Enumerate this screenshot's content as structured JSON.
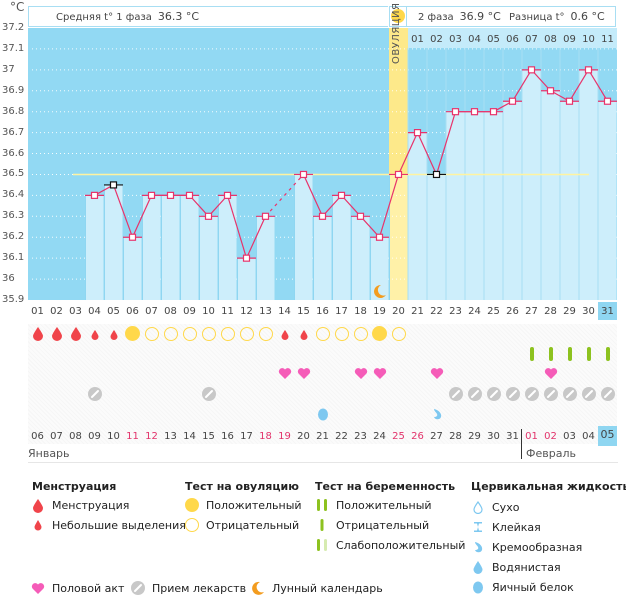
{
  "header": {
    "unit": "°C",
    "phase1_label": "Средняя t° 1 фаза",
    "phase1_value": "36.3 °C",
    "phase2_label": "2 фаза",
    "phase2_value": "36.9 °C",
    "diff_label": "Разница t°",
    "diff_value": "0.6 °C",
    "ovulation_label": "ОВУЛЯЦИЯ"
  },
  "chart_data": {
    "type": "line",
    "title": "",
    "xlabel": "",
    "ylabel": "°C",
    "ylim": [
      35.9,
      37.2
    ],
    "yticks": [
      "37.2",
      "37.1",
      "37",
      "36.9",
      "36.8",
      "36.7",
      "36.6",
      "36.5",
      "36.4",
      "36.3",
      "36.2",
      "36.1",
      "36",
      "35.9"
    ],
    "cycle_days": [
      "01",
      "02",
      "03",
      "04",
      "05",
      "06",
      "07",
      "08",
      "09",
      "10",
      "11",
      "12",
      "13",
      "14",
      "15",
      "16",
      "17",
      "18",
      "19",
      "20",
      "21",
      "22",
      "23",
      "24",
      "25",
      "26",
      "27",
      "28",
      "29",
      "30",
      "31"
    ],
    "phase2_day_labels": [
      "01",
      "02",
      "03",
      "04",
      "05",
      "06",
      "07",
      "08",
      "09",
      "10",
      "11"
    ],
    "temperatures": [
      null,
      null,
      null,
      36.4,
      36.45,
      36.2,
      36.4,
      36.4,
      36.4,
      36.3,
      36.4,
      36.1,
      36.3,
      null,
      36.5,
      36.3,
      36.4,
      36.3,
      36.2,
      36.5,
      36.7,
      36.5,
      36.8,
      36.8,
      36.8,
      36.85,
      37.0,
      36.9,
      36.85,
      37.0,
      36.85
    ],
    "excluded_days": [
      5,
      22
    ],
    "coverline": 36.5,
    "ovulation_day": 20,
    "phase2_start_day": 21,
    "current_day": 31,
    "series": [
      {
        "name": "Базальная температура",
        "values": [
          null,
          null,
          null,
          36.4,
          36.45,
          36.2,
          36.4,
          36.4,
          36.4,
          36.3,
          36.4,
          36.1,
          36.3,
          null,
          36.5,
          36.3,
          36.4,
          36.3,
          36.2,
          36.5,
          36.7,
          36.5,
          36.8,
          36.8,
          36.8,
          36.85,
          37.0,
          36.9,
          36.85,
          37.0,
          36.85
        ]
      }
    ]
  },
  "calendar": {
    "dates": [
      "06",
      "07",
      "08",
      "09",
      "10",
      "11",
      "12",
      "13",
      "14",
      "15",
      "16",
      "17",
      "18",
      "19",
      "20",
      "21",
      "22",
      "23",
      "24",
      "25",
      "26",
      "27",
      "28",
      "29",
      "30",
      "31",
      "01",
      "02",
      "03",
      "04",
      "05"
    ],
    "red_dates_idx": [
      6,
      7,
      13,
      14,
      20,
      21,
      27,
      28
    ],
    "today_idx": 31,
    "month1": "Январь",
    "month2": "Февраль",
    "month2_start_idx": 27
  },
  "rows": {
    "menstruation": {
      "1": "heavy",
      "2": "heavy",
      "3": "heavy",
      "4": "light",
      "5": "light",
      "14": "light",
      "15": "light"
    },
    "ovulation_test": {
      "6": "positive",
      "7": "negative",
      "8": "negative",
      "9": "negative",
      "10": "negative",
      "11": "negative",
      "12": "negative",
      "13": "negative",
      "16": "negative",
      "17": "negative",
      "18": "negative",
      "19": "positive",
      "20": "negative"
    },
    "pregnancy_test": {
      "27": "negative",
      "28": "negative",
      "29": "negative",
      "30": "negative",
      "31": "negative"
    },
    "intercourse": [
      14,
      15,
      18,
      19,
      22,
      28
    ],
    "medication": [
      4,
      10,
      23,
      24,
      25,
      26,
      27,
      28,
      29,
      30,
      31
    ],
    "cervical_fluid": {
      "16": "egg_white",
      "22": "creamy"
    },
    "lunar": [
      19
    ]
  },
  "legend": {
    "menstruation": {
      "title": "Менструация",
      "items": [
        "Менструация",
        "Небольшие выделения"
      ]
    },
    "ovulation_test": {
      "title": "Тест на овуляцию",
      "items": [
        "Положительный",
        "Отрицательный"
      ]
    },
    "pregnancy_test": {
      "title": "Тест на беременность",
      "items": [
        "Положительный",
        "Отрицательный",
        "Слабоположительный"
      ]
    },
    "cervical_fluid": {
      "title": "Цервикальная жидкость",
      "items": [
        "Сухо",
        "Клейкая",
        "Кремообразная",
        "Водянистая",
        "Яичный белок"
      ]
    },
    "other": [
      "Половой акт",
      "Прием лекарств",
      "Лунный календарь"
    ]
  },
  "colors": {
    "sky": "#92d9f3",
    "bar": "#cdeefb",
    "line": "#e8336b",
    "coverline": "#fff3a0",
    "ovulation": "#fff1a8",
    "sun": "#ffd84a",
    "blood": "#f0444a",
    "heart": "#f55cb8",
    "pill": "#c8c8c8",
    "preg": "#8dc21f",
    "fluid": "#7ec8f0",
    "moon": "#f39c1f"
  }
}
